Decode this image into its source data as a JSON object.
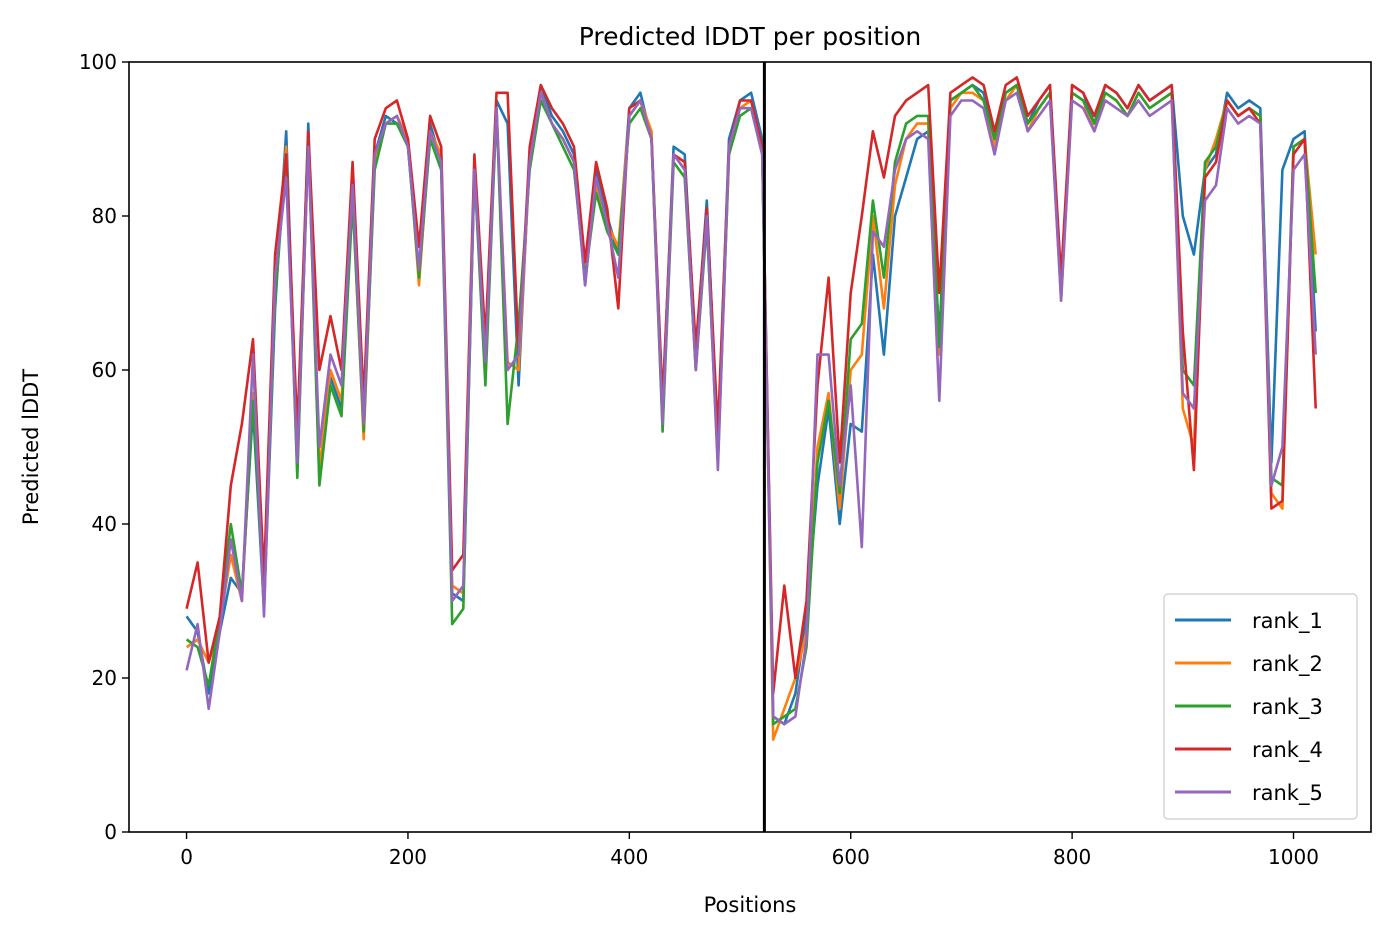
{
  "chart_data": {
    "type": "line",
    "title": "Predicted lDDT per position",
    "xlabel": "Positions",
    "ylabel": "Predicted lDDT",
    "xlim": [
      -52,
      1070
    ],
    "ylim": [
      0,
      100
    ],
    "xticks": [
      0,
      200,
      400,
      600,
      800,
      1000
    ],
    "yticks": [
      0,
      20,
      40,
      60,
      80,
      100
    ],
    "grid": false,
    "legend_position": "lower-right",
    "chain_break": 522,
    "series": [
      {
        "name": "rank_1",
        "color": "#1f77b4",
        "x": [
          0,
          10,
          20,
          30,
          40,
          50,
          60,
          70,
          80,
          90,
          100,
          110,
          120,
          130,
          140,
          150,
          160,
          170,
          180,
          190,
          200,
          210,
          220,
          230,
          240,
          250,
          260,
          270,
          280,
          290,
          300,
          310,
          320,
          330,
          340,
          350,
          360,
          370,
          380,
          390,
          400,
          410,
          420,
          430,
          440,
          450,
          460,
          470,
          480,
          490,
          500,
          510,
          520,
          530,
          540,
          550,
          560,
          570,
          580,
          590,
          600,
          610,
          620,
          630,
          640,
          650,
          660,
          670,
          680,
          690,
          700,
          710,
          720,
          730,
          740,
          750,
          760,
          770,
          780,
          790,
          800,
          810,
          820,
          830,
          840,
          850,
          860,
          870,
          880,
          890,
          900,
          910,
          920,
          930,
          940,
          950,
          960,
          970,
          980,
          990,
          1000,
          1010,
          1020
        ],
        "y": [
          28,
          26,
          18,
          26,
          33,
          31,
          55,
          29,
          68,
          91,
          48,
          92,
          46,
          59,
          55,
          85,
          52,
          88,
          93,
          92,
          89,
          73,
          92,
          87,
          31,
          30,
          86,
          60,
          95,
          92,
          58,
          88,
          97,
          93,
          91,
          88,
          71,
          86,
          80,
          75,
          94,
          96,
          90,
          55,
          89,
          88,
          62,
          82,
          50,
          90,
          95,
          96,
          90,
          15,
          14,
          18,
          28,
          45,
          55,
          40,
          53,
          52,
          75,
          62,
          80,
          85,
          90,
          91,
          64,
          95,
          96,
          97,
          96,
          90,
          96,
          97,
          92,
          95,
          97,
          70,
          97,
          96,
          92,
          97,
          96,
          94,
          97,
          95,
          96,
          97,
          80,
          75,
          86,
          88,
          96,
          94,
          95,
          94,
          48,
          86,
          90,
          91,
          65
        ]
      },
      {
        "name": "rank_2",
        "color": "#ff7f0e",
        "x": [
          0,
          10,
          20,
          30,
          40,
          50,
          60,
          70,
          80,
          90,
          100,
          110,
          120,
          130,
          140,
          150,
          160,
          170,
          180,
          190,
          200,
          210,
          220,
          230,
          240,
          250,
          260,
          270,
          280,
          290,
          300,
          310,
          320,
          330,
          340,
          350,
          360,
          370,
          380,
          390,
          400,
          410,
          420,
          430,
          440,
          450,
          460,
          470,
          480,
          490,
          500,
          510,
          520,
          530,
          540,
          550,
          560,
          570,
          580,
          590,
          600,
          610,
          620,
          630,
          640,
          650,
          660,
          670,
          680,
          690,
          700,
          710,
          720,
          730,
          740,
          750,
          760,
          770,
          780,
          790,
          800,
          810,
          820,
          830,
          840,
          850,
          860,
          870,
          880,
          890,
          900,
          910,
          920,
          930,
          940,
          950,
          960,
          970,
          980,
          990,
          1000,
          1010,
          1020
        ],
        "y": [
          24,
          25,
          22,
          27,
          36,
          30,
          57,
          31,
          70,
          89,
          47,
          90,
          47,
          60,
          56,
          83,
          51,
          87,
          92,
          93,
          90,
          71,
          91,
          88,
          32,
          31,
          87,
          62,
          94,
          61,
          60,
          87,
          96,
          92,
          90,
          87,
          72,
          84,
          79,
          76,
          93,
          95,
          91,
          53,
          88,
          86,
          60,
          80,
          49,
          88,
          94,
          95,
          89,
          12,
          16,
          20,
          26,
          50,
          57,
          42,
          60,
          62,
          80,
          68,
          84,
          90,
          92,
          92,
          62,
          94,
          96,
          96,
          95,
          89,
          95,
          97,
          91,
          94,
          96,
          69,
          96,
          95,
          91,
          96,
          95,
          93,
          96,
          94,
          95,
          96,
          55,
          50,
          86,
          90,
          95,
          93,
          94,
          93,
          44,
          42,
          89,
          90,
          75
        ]
      },
      {
        "name": "rank_3",
        "color": "#2ca02c",
        "x": [
          0,
          10,
          20,
          30,
          40,
          50,
          60,
          70,
          80,
          90,
          100,
          110,
          120,
          130,
          140,
          150,
          160,
          170,
          180,
          190,
          200,
          210,
          220,
          230,
          240,
          250,
          260,
          270,
          280,
          290,
          300,
          310,
          320,
          330,
          340,
          350,
          360,
          370,
          380,
          390,
          400,
          410,
          420,
          430,
          440,
          450,
          460,
          470,
          480,
          490,
          500,
          510,
          520,
          530,
          540,
          550,
          560,
          570,
          580,
          590,
          600,
          610,
          620,
          630,
          640,
          650,
          660,
          670,
          680,
          690,
          700,
          710,
          720,
          730,
          740,
          750,
          760,
          770,
          780,
          790,
          800,
          810,
          820,
          830,
          840,
          850,
          860,
          870,
          880,
          890,
          900,
          910,
          920,
          930,
          940,
          950,
          960,
          970,
          980,
          990,
          1000,
          1010,
          1020
        ],
        "y": [
          25,
          24,
          19,
          28,
          40,
          31,
          56,
          30,
          69,
          88,
          46,
          90,
          45,
          58,
          54,
          82,
          52,
          86,
          92,
          92,
          89,
          72,
          90,
          86,
          27,
          29,
          86,
          58,
          94,
          53,
          66,
          86,
          95,
          92,
          89,
          86,
          72,
          83,
          78,
          75,
          92,
          94,
          90,
          52,
          87,
          85,
          60,
          79,
          48,
          88,
          93,
          94,
          88,
          14,
          15,
          16,
          24,
          48,
          56,
          44,
          64,
          66,
          82,
          72,
          87,
          92,
          93,
          93,
          63,
          95,
          96,
          97,
          95,
          90,
          96,
          97,
          92,
          94,
          96,
          70,
          96,
          95,
          92,
          96,
          95,
          93,
          96,
          94,
          95,
          96,
          60,
          58,
          87,
          89,
          95,
          93,
          94,
          93,
          46,
          45,
          89,
          90,
          70
        ]
      },
      {
        "name": "rank_4",
        "color": "#d62728",
        "x": [
          0,
          10,
          20,
          30,
          40,
          50,
          60,
          70,
          80,
          90,
          100,
          110,
          120,
          130,
          140,
          150,
          160,
          170,
          180,
          190,
          200,
          210,
          220,
          230,
          240,
          250,
          260,
          270,
          280,
          290,
          300,
          310,
          320,
          330,
          340,
          350,
          360,
          370,
          380,
          390,
          400,
          410,
          420,
          430,
          440,
          450,
          460,
          470,
          480,
          490,
          500,
          510,
          520,
          530,
          540,
          550,
          560,
          570,
          580,
          590,
          600,
          610,
          620,
          630,
          640,
          650,
          660,
          670,
          680,
          690,
          700,
          710,
          720,
          730,
          740,
          750,
          760,
          770,
          780,
          790,
          800,
          810,
          820,
          830,
          840,
          850,
          860,
          870,
          880,
          890,
          900,
          910,
          920,
          930,
          940,
          950,
          960,
          970,
          980,
          990,
          1000,
          1010,
          1020
        ],
        "y": [
          29,
          35,
          22,
          28,
          45,
          53,
          64,
          33,
          75,
          88,
          52,
          91,
          60,
          67,
          60,
          87,
          56,
          90,
          94,
          95,
          90,
          76,
          93,
          89,
          34,
          36,
          88,
          64,
          96,
          96,
          62,
          89,
          97,
          94,
          92,
          89,
          74,
          87,
          81,
          68,
          94,
          95,
          90,
          56,
          88,
          87,
          63,
          81,
          52,
          89,
          95,
          95,
          89,
          18,
          32,
          20,
          30,
          58,
          72,
          48,
          70,
          80,
          91,
          85,
          93,
          95,
          96,
          97,
          70,
          96,
          97,
          98,
          97,
          91,
          97,
          98,
          93,
          95,
          97,
          72,
          97,
          96,
          93,
          97,
          96,
          94,
          97,
          95,
          96,
          97,
          65,
          47,
          85,
          87,
          95,
          93,
          94,
          92,
          42,
          43,
          88,
          90,
          55
        ]
      },
      {
        "name": "rank_5",
        "color": "#9467bd",
        "x": [
          0,
          10,
          20,
          30,
          40,
          50,
          60,
          70,
          80,
          90,
          100,
          110,
          120,
          130,
          140,
          150,
          160,
          170,
          180,
          190,
          200,
          210,
          220,
          230,
          240,
          250,
          260,
          270,
          280,
          290,
          300,
          310,
          320,
          330,
          340,
          350,
          360,
          370,
          380,
          390,
          400,
          410,
          420,
          430,
          440,
          450,
          460,
          470,
          480,
          490,
          500,
          510,
          520,
          530,
          540,
          550,
          560,
          570,
          580,
          590,
          600,
          610,
          620,
          630,
          640,
          650,
          660,
          670,
          680,
          690,
          700,
          710,
          720,
          730,
          740,
          750,
          760,
          770,
          780,
          790,
          800,
          810,
          820,
          830,
          840,
          850,
          860,
          870,
          880,
          890,
          900,
          910,
          920,
          930,
          940,
          950,
          960,
          970,
          980,
          990,
          1000,
          1010,
          1020
        ],
        "y": [
          21,
          27,
          16,
          26,
          38,
          30,
          62,
          28,
          72,
          85,
          48,
          89,
          50,
          62,
          58,
          84,
          53,
          88,
          92,
          93,
          89,
          73,
          91,
          87,
          30,
          32,
          86,
          61,
          94,
          60,
          62,
          87,
          96,
          92,
          90,
          87,
          71,
          85,
          79,
          72,
          93,
          95,
          90,
          53,
          88,
          86,
          60,
          80,
          47,
          89,
          94,
          94,
          88,
          15,
          14,
          15,
          25,
          62,
          62,
          45,
          58,
          37,
          78,
          76,
          86,
          90,
          91,
          90,
          56,
          93,
          95,
          95,
          94,
          88,
          95,
          96,
          91,
          93,
          95,
          69,
          95,
          94,
          91,
          95,
          94,
          93,
          95,
          93,
          94,
          95,
          57,
          55,
          82,
          84,
          94,
          92,
          93,
          92,
          45,
          50,
          86,
          88,
          62
        ]
      }
    ]
  }
}
